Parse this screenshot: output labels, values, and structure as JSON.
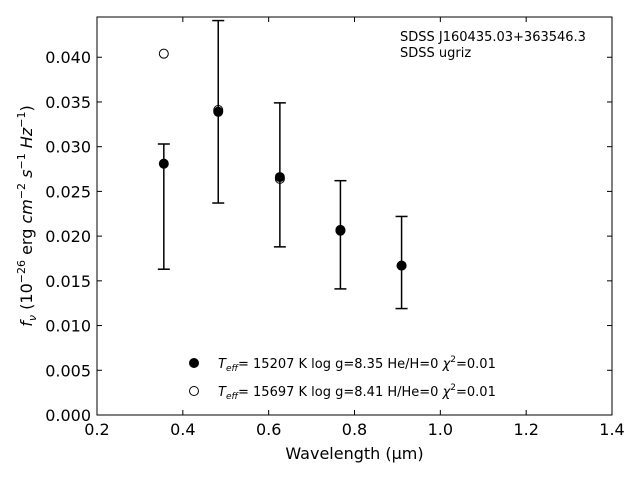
{
  "chart_data": {
    "type": "scatter",
    "title": "",
    "xlabel": "Wavelength (μm)",
    "ylabel": "f_ν (10^-26 erg cm^-2 s^-1 Hz^-1)",
    "xlim": [
      0.2,
      1.4
    ],
    "ylim": [
      0.0,
      0.0445
    ],
    "grid": false,
    "legend_position": "lower-center",
    "x_ticks": [
      "0.2",
      "0.4",
      "0.6",
      "0.8",
      "1.0",
      "1.2",
      "1.4"
    ],
    "y_ticks": [
      "0.000",
      "0.005",
      "0.010",
      "0.015",
      "0.020",
      "0.025",
      "0.030",
      "0.035",
      "0.040"
    ],
    "annotation": [
      "SDSS J160435.03+363546.3",
      "SDSS ugriz"
    ],
    "observed": {
      "x": [
        0.3557,
        0.4825,
        0.6261,
        0.7672,
        0.9097
      ],
      "y": [
        0.0281,
        0.0339,
        0.0266,
        0.0206,
        0.0167
      ],
      "err_low": [
        0.0163,
        0.0237,
        0.0188,
        0.0141,
        0.0119
      ],
      "err_high": [
        0.0303,
        0.0441,
        0.0349,
        0.0262,
        0.0222
      ]
    },
    "series": [
      {
        "name": "T_eff= 15207 K  log g=8.35  He/H=0  χ²=0.01",
        "marker": "filled-circle",
        "x": [
          0.3557,
          0.4825,
          0.6261,
          0.7672,
          0.9097
        ],
        "y": [
          0.0281,
          0.0339,
          0.0266,
          0.0206,
          0.0167
        ]
      },
      {
        "name": "T_eff= 15697 K  log g=8.41  H/He=0  χ²=0.01",
        "marker": "open-circle",
        "x": [
          0.3557,
          0.4825,
          0.6261,
          0.7672,
          0.9097
        ],
        "y": [
          0.0404,
          0.0341,
          0.0264,
          0.0207,
          0.0167
        ]
      }
    ]
  }
}
